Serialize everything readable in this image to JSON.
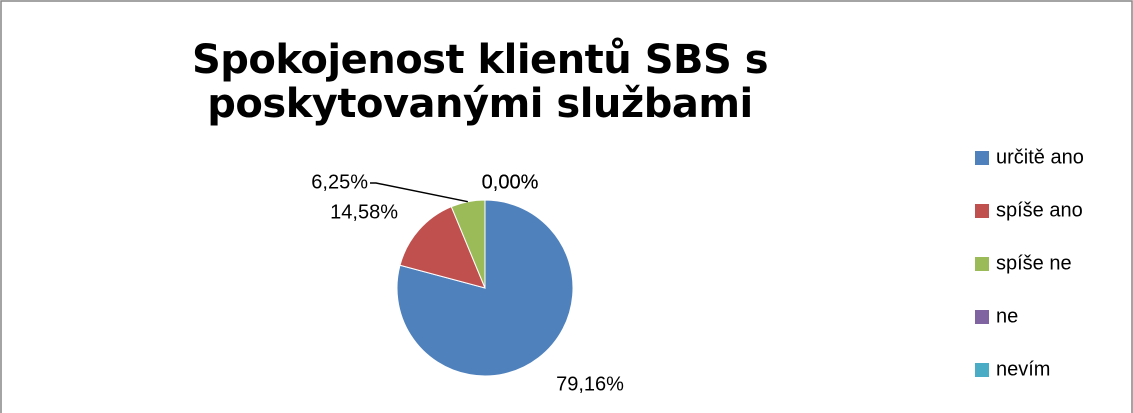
{
  "chart_data": {
    "type": "pie",
    "title": "Spokojenost klientů SBS s poskytovanými službami",
    "categories": [
      "určitě ano",
      "spíše ano",
      "spíše ne",
      "ne",
      "nevím"
    ],
    "values": [
      79.16,
      14.58,
      6.25,
      0,
      0
    ],
    "value_labels": [
      "79,16%",
      "14,58%",
      "6,25%",
      "0,00%",
      "0,00%"
    ],
    "colors": [
      "#4f81bd",
      "#c0504d",
      "#9bbb59",
      "#8064a2",
      "#4bacc6"
    ],
    "legend": "right"
  }
}
